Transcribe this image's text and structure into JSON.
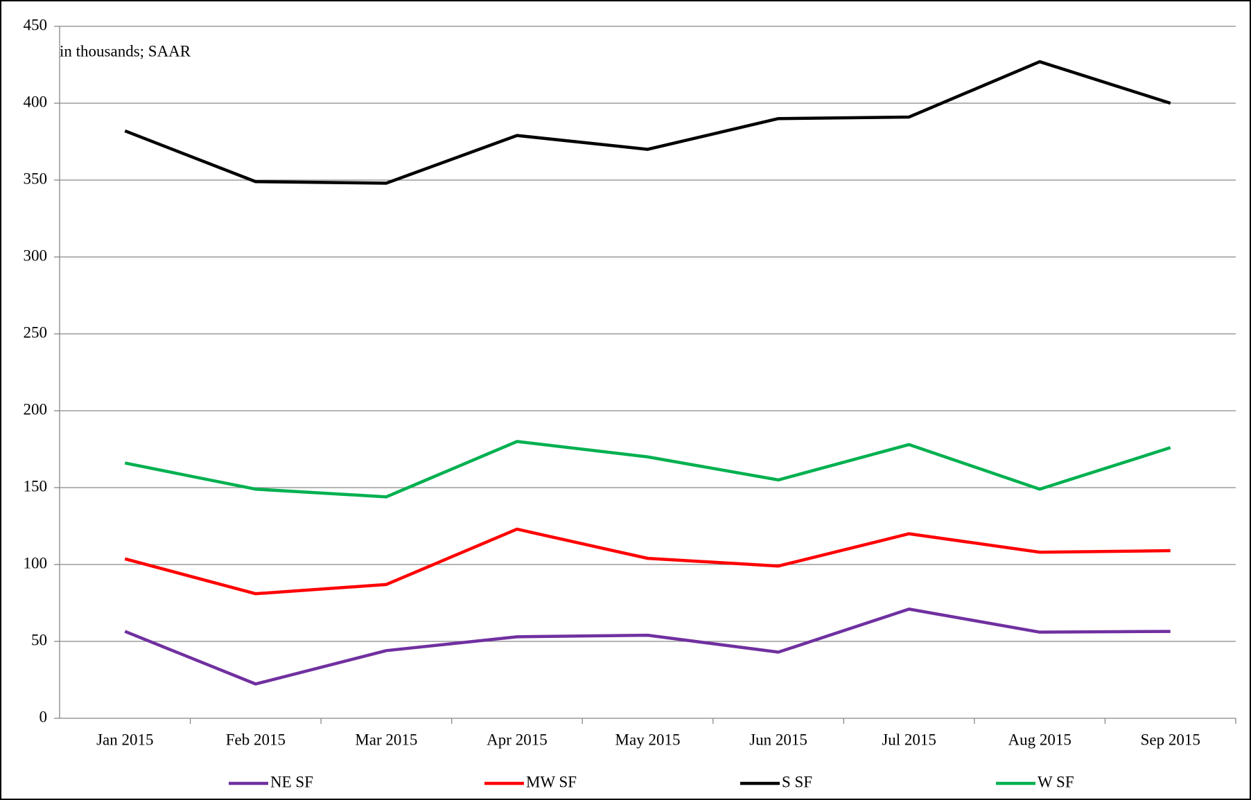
{
  "chart_data": {
    "type": "line",
    "annotation": "in thousands; SAAR",
    "categories": [
      "Jan 2015",
      "Feb 2015",
      "Mar 2015",
      "Apr 2015",
      "May 2015",
      "Jun 2015",
      "Jul 2015",
      "Aug 2015",
      "Sep 2015"
    ],
    "series": [
      {
        "name": "NE SF",
        "color": "#7030a0",
        "values": [
          56.5,
          22.3,
          44,
          53,
          54,
          43,
          71,
          56,
          56.5
        ]
      },
      {
        "name": "MW SF",
        "color": "#ff0000",
        "values": [
          103.7,
          81,
          87,
          123,
          104,
          99,
          120,
          108,
          109
        ]
      },
      {
        "name": "S SF",
        "color": "#000000",
        "values": [
          382,
          349,
          348,
          379,
          370,
          390,
          391,
          427,
          400
        ]
      },
      {
        "name": "W SF",
        "color": "#00b050",
        "values": [
          166,
          149,
          144,
          180,
          170,
          155,
          178,
          149,
          176
        ]
      }
    ],
    "ylim": [
      0,
      450
    ],
    "yticks": [
      0,
      50,
      100,
      150,
      200,
      250,
      300,
      350,
      400,
      450
    ],
    "grid": true,
    "legend": "bottom"
  }
}
